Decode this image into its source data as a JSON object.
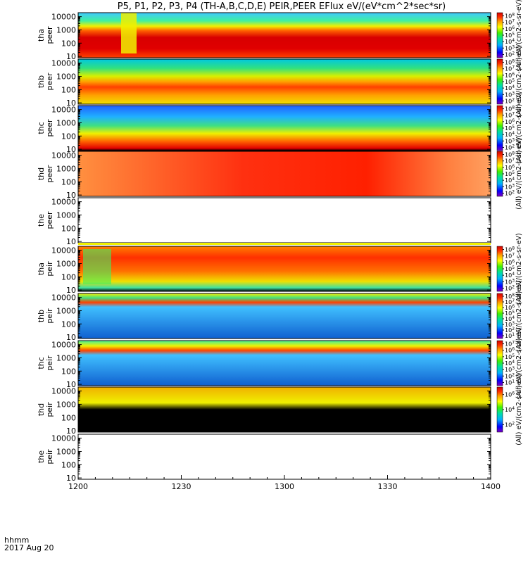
{
  "chart_data": {
    "type": "heatmap",
    "title": "P5, P1, P2, P3, P4 (TH-A,B,C,D,E) PEIR,PEER EFlux eV/(eV*cm^2*sec*sr)",
    "time_label": "hhmm",
    "date_label": "2017 Aug 20",
    "x_ticks": [
      "1200",
      "1230",
      "1300",
      "1330",
      "1400"
    ],
    "x_range": [
      "12:00",
      "14:00"
    ],
    "y_scale": "log",
    "y_ticks": [
      "10",
      "100",
      "1000",
      "10000"
    ],
    "panels": [
      {
        "probe": "tha",
        "product": "peer",
        "ylabel": [
          "tha",
          "peer"
        ],
        "colorbar_label": "(All) eV/(cm2-s-sr-eV)",
        "colorbar_ticks": [
          "10^2",
          "10^3",
          "10^4",
          "10^5",
          "10^6",
          "10^7",
          "10^8"
        ],
        "has_data": true
      },
      {
        "probe": "thb",
        "product": "peer",
        "ylabel": [
          "thb",
          "peer"
        ],
        "colorbar_label": "(All) eV/(cm2-s-sr-eV)",
        "colorbar_ticks": [
          "10^2",
          "10^3",
          "10^4",
          "10^5",
          "10^6",
          "10^7",
          "10^8"
        ],
        "has_data": true
      },
      {
        "probe": "thc",
        "product": "peer",
        "ylabel": [
          "thc",
          "peer"
        ],
        "colorbar_label": "(All) eV/(cm2-s-sr-eV)",
        "colorbar_ticks": [
          "10^2",
          "10^3",
          "10^4",
          "10^5",
          "10^6",
          "10^7",
          "10^8"
        ],
        "has_data": true
      },
      {
        "probe": "thd",
        "product": "peer",
        "ylabel": [
          "thd",
          "peer"
        ],
        "colorbar_label": "(All) eV/(cm2-s-sr-eV)",
        "colorbar_ticks": [
          "10^2",
          "10^3",
          "10^4",
          "10^5",
          "10^6",
          "10^7",
          "10^8"
        ],
        "has_data": true
      },
      {
        "probe": "the",
        "product": "peer",
        "ylabel": [
          "the",
          "peer"
        ],
        "colorbar_label": "",
        "colorbar_ticks": [],
        "has_data": false
      },
      {
        "probe": "tha",
        "product": "peir",
        "ylabel": [
          "tha",
          "peir"
        ],
        "colorbar_label": "(All) eV/(cm2-s-sr-eV)",
        "colorbar_ticks": [
          "10^2",
          "10^3",
          "10^4",
          "10^5",
          "10^6",
          "10^7",
          "10^8"
        ],
        "has_data": true
      },
      {
        "probe": "thb",
        "product": "peir",
        "ylabel": [
          "thb",
          "peir"
        ],
        "colorbar_label": "(All) eV/(cm2-s-sr-eV)",
        "colorbar_ticks": [
          "10^1",
          "10^2",
          "10^3",
          "10^4",
          "10^5",
          "10^6",
          "10^7",
          "10^8"
        ],
        "has_data": true
      },
      {
        "probe": "thc",
        "product": "peir",
        "ylabel": [
          "thc",
          "peir"
        ],
        "colorbar_label": "(All) eV/(cm2-s-sr-eV)",
        "colorbar_ticks": [
          "10^1",
          "10^2",
          "10^3",
          "10^4",
          "10^5",
          "10^6",
          "10^7"
        ],
        "has_data": true
      },
      {
        "probe": "thd",
        "product": "peir",
        "ylabel": [
          "thd",
          "peir"
        ],
        "colorbar_label": "(All) eV/(cm2-s-sr-eV)",
        "colorbar_ticks": [
          "10^2",
          "10^4",
          "10^6"
        ],
        "has_data": true
      },
      {
        "probe": "the",
        "product": "peir",
        "ylabel": [
          "the",
          "peir"
        ],
        "colorbar_label": "",
        "colorbar_ticks": [],
        "has_data": false
      }
    ],
    "colormap": [
      "#8000c0",
      "#0000ff",
      "#00b0ff",
      "#00e0a0",
      "#40f000",
      "#ffff00",
      "#ffa000",
      "#ff3000",
      "#d00000"
    ]
  }
}
